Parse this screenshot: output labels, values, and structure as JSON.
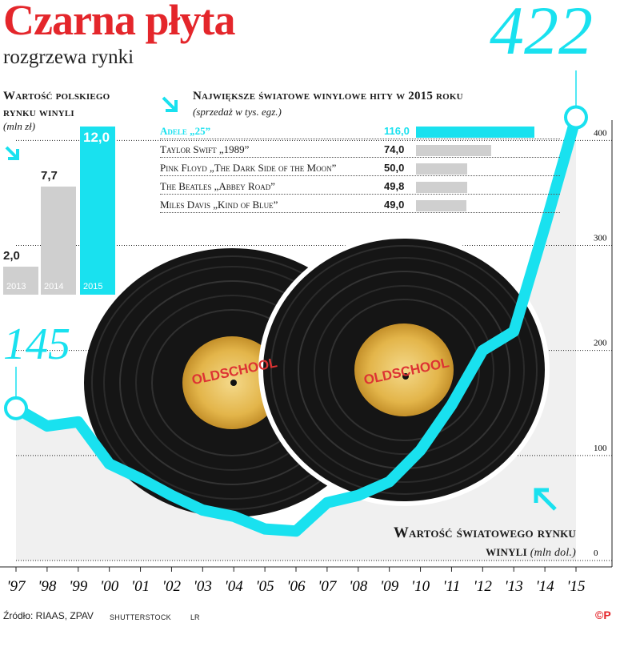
{
  "header": {
    "title": "Czarna płyta",
    "subtitle": "rozgrzewa rynki"
  },
  "chart_data": [
    {
      "type": "bar",
      "title": "Wartość polskiego rynku winyli",
      "unit": "(mln zł)",
      "categories": [
        "2013",
        "2014",
        "2015"
      ],
      "values": [
        2.0,
        7.7,
        12.0
      ],
      "value_labels": [
        "2,0",
        "7,7",
        "12,0"
      ],
      "colors": [
        "#cfcfcf",
        "#cfcfcf",
        "#19e1ef"
      ]
    },
    {
      "type": "bar",
      "orientation": "horizontal",
      "title": "Największe światowe winylowe hity w 2015 roku",
      "unit": "(sprzedaż w tys. egz.)",
      "categories": [
        "Adele „25”",
        "Taylor Swift „1989”",
        "Pink Floyd „The Dark Side of the Moon”",
        "The Beatles „Abbey Road”",
        "Miles Davis „Kind of Blue”"
      ],
      "values": [
        116.0,
        74.0,
        50.0,
        49.8,
        49.0
      ],
      "value_labels": [
        "116,0",
        "74,0",
        "50,0",
        "49,8",
        "49,0"
      ],
      "highlight_color": "#19e1ef",
      "bar_color": "#cfcfcf"
    },
    {
      "type": "area",
      "title": "Wartość światowego rynku winyli",
      "unit": "(mln dol.)",
      "x": [
        "'97",
        "'98",
        "'99",
        "'00",
        "'01",
        "'02",
        "'03",
        "'04",
        "'05",
        "'06",
        "'07",
        "'08",
        "'09",
        "'10",
        "'11",
        "'12",
        "'13",
        "'14",
        "'15"
      ],
      "y": [
        145,
        128,
        132,
        92,
        78,
        62,
        48,
        42,
        30,
        28,
        55,
        62,
        75,
        105,
        148,
        200,
        218,
        318,
        422
      ],
      "ylim": [
        0,
        430
      ],
      "yticks": [
        0,
        100,
        200,
        300,
        400
      ],
      "start_label": "145",
      "end_label": "422",
      "line_color": "#19e1ef"
    }
  ],
  "footer": {
    "source": "Źródło: RIAAS, ZPAV",
    "photo": "SHUTTERSTOCK",
    "author": "LR",
    "logo": "©P"
  },
  "record_label": {
    "text": "OLDSCHOOL"
  }
}
